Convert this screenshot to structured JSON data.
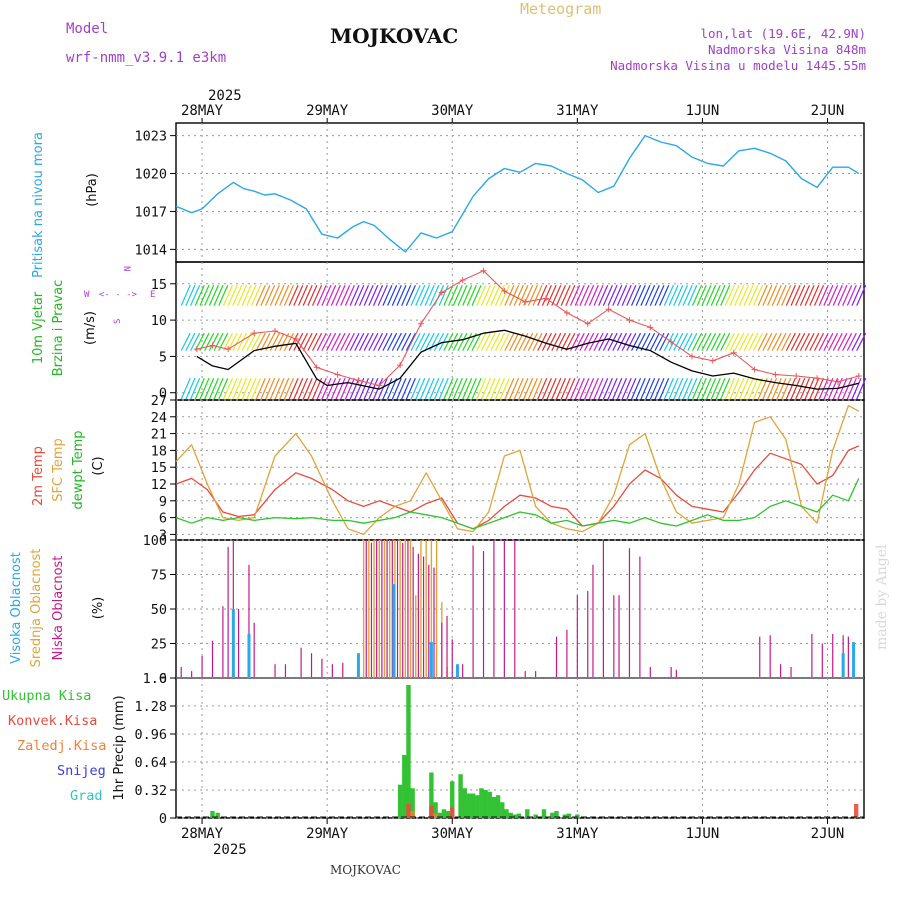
{
  "header": {
    "model_label": "Model",
    "model_value": "wrf-nmm_v3.9.1 e3km",
    "station": "MOJKOVAC",
    "meteogram": "Meteogram",
    "lonlat": "lon,lat (19.6E, 42.9N)",
    "altitude": "Nadmorska Visina 848m",
    "altitude_model": "Nadmorska Visina u modelu 1445.55m",
    "watermark": "made by Angel",
    "footer_station": "MOJKOVAC"
  },
  "dates": {
    "year": "2025",
    "days": [
      "28MAY",
      "29MAY",
      "30MAY",
      "31MAY",
      "1JUN",
      "2JUN"
    ]
  },
  "colors": {
    "pressure": "#2aa8e8",
    "wind": "#000000",
    "temp2m": "#e84c3c",
    "sfctemp": "#e0a43a",
    "dewpt": "#2ec42e",
    "high_cloud": "#2aa8e8",
    "mid_cloud": "#e0a43a",
    "low_cloud": "#c21a8c",
    "total_precip": "#33c233",
    "conv_precip": "#e84c3c",
    "frozen_precip": "#f0803a",
    "snow": "#3c3cd8",
    "hail": "#2ec4c4",
    "gridline": "#9a9a9a"
  },
  "chart_data": [
    {
      "id": "pressure",
      "type": "line",
      "title": "Pritisak na nivou mora",
      "ylabel": "(hPa)",
      "ylim": [
        1013,
        1024
      ],
      "yticks": [
        "1014",
        "1017",
        "1020",
        "1023"
      ],
      "x_unit": "hours since 28MAY 00Z",
      "xlim": [
        -5,
        127
      ],
      "x": [
        -5,
        -2,
        0,
        3,
        6,
        8,
        10,
        12,
        14,
        17,
        20,
        23,
        26,
        29,
        31,
        33,
        36,
        39,
        42,
        45,
        48,
        50,
        52,
        55,
        58,
        61,
        64,
        67,
        70,
        73,
        76,
        79,
        82,
        85,
        88,
        91,
        94,
        97,
        100,
        103,
        106,
        109,
        112,
        115,
        118,
        121,
        124,
        126
      ],
      "values": [
        1017.4,
        1016.9,
        1017.2,
        1018.4,
        1019.3,
        1018.8,
        1018.6,
        1018.3,
        1018.4,
        1017.9,
        1017.2,
        1015.2,
        1014.9,
        1015.8,
        1016.2,
        1015.9,
        1014.8,
        1013.8,
        1015.3,
        1014.9,
        1015.4,
        1016.8,
        1018.2,
        1019.6,
        1020.4,
        1020.1,
        1020.8,
        1020.6,
        1020.0,
        1019.5,
        1018.5,
        1019.0,
        1021.2,
        1023.0,
        1022.5,
        1022.2,
        1021.3,
        1020.8,
        1020.6,
        1021.8,
        1022.0,
        1021.6,
        1021.0,
        1019.6,
        1018.9,
        1020.5,
        1020.5,
        1020.0
      ]
    },
    {
      "id": "wind",
      "type": "line",
      "title": "10m Vjetar Brzina i Pravac",
      "ylabel": "(m/s)",
      "ylim": [
        -1,
        18
      ],
      "yticks": [
        "0",
        "5",
        "10",
        "15"
      ],
      "compass": {
        "n": "N",
        "w": "W",
        "e": "E",
        "s": "S",
        "arrow": "<- - ->"
      },
      "speed_x": [
        -1,
        2,
        5,
        10,
        14,
        18,
        22,
        24,
        26,
        28,
        30,
        34,
        38,
        42,
        46,
        50,
        54,
        58,
        62,
        66,
        70,
        74,
        78,
        82,
        86,
        90,
        94,
        98,
        102,
        106,
        110,
        114,
        118,
        122,
        126
      ],
      "speed_values": [
        5.0,
        3.7,
        3.2,
        5.8,
        6.4,
        6.8,
        1.9,
        1.0,
        1.2,
        1.4,
        1.1,
        0.5,
        2.0,
        5.6,
        6.9,
        7.3,
        8.2,
        8.6,
        7.8,
        6.8,
        6.0,
        6.8,
        7.4,
        6.5,
        5.8,
        4.2,
        3.0,
        2.3,
        2.7,
        1.9,
        1.4,
        1.0,
        0.5,
        0.6,
        1.3
      ],
      "gust_x": [
        -1,
        2,
        5,
        10,
        14,
        18,
        22,
        26,
        30,
        34,
        38,
        42,
        46,
        50,
        54,
        58,
        62,
        66,
        70,
        74,
        78,
        82,
        86,
        90,
        94,
        98,
        102,
        106,
        110,
        114,
        118,
        122,
        126
      ],
      "gust_values": [
        6.0,
        6.5,
        6.0,
        8.2,
        8.5,
        7.4,
        3.5,
        2.5,
        1.7,
        1.0,
        3.8,
        9.5,
        13.8,
        15.5,
        16.8,
        14.0,
        12.5,
        13.0,
        11.0,
        9.5,
        11.5,
        10.0,
        9.0,
        7.0,
        5.0,
        4.4,
        5.5,
        3.2,
        2.5,
        2.3,
        2.0,
        1.5,
        2.3
      ]
    },
    {
      "id": "temperature",
      "type": "line",
      "title": "2m Temp",
      "ylabel": "(C)",
      "ylim": [
        2,
        27
      ],
      "yticks": [
        "3",
        "6",
        "9",
        "12",
        "15",
        "18",
        "21",
        "24",
        "27"
      ],
      "series": [
        {
          "name": "2m Temp",
          "x": [
            -5,
            -2,
            1,
            4,
            7,
            10,
            14,
            18,
            21,
            25,
            28,
            31,
            34,
            37,
            40,
            43,
            46,
            49,
            52,
            55,
            58,
            61,
            64,
            67,
            70,
            73,
            76,
            79,
            82,
            85,
            88,
            91,
            94,
            97,
            100,
            103,
            106,
            109,
            112,
            115,
            118,
            121,
            124,
            126
          ],
          "values": [
            12,
            13,
            11,
            7,
            6.2,
            6.5,
            11,
            14,
            13,
            11,
            9,
            8,
            9,
            8,
            7,
            8.5,
            9.5,
            5,
            4,
            5.5,
            8,
            10,
            9.5,
            8,
            7.5,
            4.5,
            5,
            8,
            12,
            14.5,
            13,
            10,
            8,
            7.5,
            7,
            10.5,
            14.5,
            17.5,
            16.5,
            15.5,
            12,
            13.5,
            18,
            18.8
          ]
        },
        {
          "name": "SFC Temp",
          "x": [
            -5,
            -2,
            1,
            4,
            7,
            10,
            14,
            18,
            21,
            25,
            28,
            31,
            34,
            37,
            40,
            43,
            46,
            49,
            52,
            55,
            58,
            61,
            64,
            67,
            70,
            73,
            76,
            79,
            82,
            85,
            88,
            91,
            94,
            97,
            100,
            103,
            106,
            109,
            112,
            115,
            118,
            121,
            124,
            126
          ],
          "values": [
            16,
            19,
            12,
            6,
            5.5,
            6,
            17,
            21,
            17,
            9,
            4,
            3,
            6,
            8,
            9,
            14,
            9,
            4,
            3.5,
            7,
            17,
            18,
            8,
            5,
            4,
            3.5,
            5,
            10,
            19,
            21,
            13,
            7,
            5,
            5.5,
            6,
            12,
            23,
            24,
            20,
            8,
            5,
            18,
            26,
            25
          ]
        },
        {
          "name": "dewpt Temp",
          "x": [
            -5,
            -2,
            1,
            4,
            7,
            10,
            14,
            18,
            21,
            25,
            28,
            31,
            34,
            37,
            40,
            43,
            46,
            49,
            52,
            55,
            58,
            61,
            64,
            67,
            70,
            73,
            76,
            79,
            82,
            85,
            88,
            91,
            94,
            97,
            100,
            103,
            106,
            109,
            112,
            115,
            118,
            121,
            124,
            126
          ],
          "values": [
            6,
            5,
            6,
            5.5,
            6,
            5.5,
            6,
            5.8,
            6,
            5.5,
            5.5,
            5,
            5.5,
            6,
            7,
            6.5,
            6,
            5,
            4,
            5,
            6,
            7,
            6.5,
            5,
            5.5,
            4.5,
            5,
            5.5,
            5,
            6,
            5,
            4.5,
            5.5,
            6.5,
            5.5,
            5.5,
            6,
            8,
            9,
            8,
            7,
            10,
            9,
            13
          ]
        }
      ]
    },
    {
      "id": "clouds",
      "type": "bar",
      "ylabel": "(%)",
      "ylim": [
        0,
        100
      ],
      "yticks": [
        "0",
        "25",
        "50",
        "75",
        "100"
      ],
      "series": [
        {
          "name": "Visoka Oblacnost",
          "x": [
            6,
            9,
            30,
            36.8,
            44,
            49,
            123,
            125
          ],
          "values": [
            50,
            32,
            18,
            68,
            26,
            10,
            18,
            26
          ]
        },
        {
          "name": "Srednja Oblacnost",
          "x": [
            31,
            32,
            33,
            34,
            35,
            36,
            37,
            38,
            39,
            40,
            41,
            42,
            43,
            44,
            45,
            46,
            47
          ],
          "values": [
            100,
            100,
            100,
            100,
            100,
            100,
            100,
            100,
            100,
            100,
            60,
            100,
            100,
            100,
            100,
            55,
            8
          ]
        },
        {
          "name": "Niska Oblacnost",
          "x": [
            -4,
            -2,
            0,
            2,
            4,
            5,
            6,
            7,
            9,
            10,
            14,
            16,
            19,
            21,
            23,
            25,
            27,
            31.5,
            32.5,
            33.5,
            34.5,
            35.5,
            36.5,
            37.5,
            38.5,
            39.5,
            40.5,
            41.5,
            42.5,
            43.5,
            44.5,
            46,
            47,
            48,
            50,
            52,
            54,
            56,
            58,
            60,
            62,
            64,
            68,
            70,
            72,
            74,
            75,
            77,
            79,
            80,
            82,
            84,
            86,
            90,
            91,
            107,
            109,
            111,
            113,
            117,
            119,
            121,
            123,
            124
          ],
          "values": [
            8,
            5,
            16,
            27,
            52,
            95,
            100,
            50,
            82,
            40,
            10,
            10,
            22,
            18,
            14,
            10,
            11,
            100,
            98,
            100,
            100,
            100,
            100,
            100,
            98,
            100,
            95,
            90,
            88,
            82,
            80,
            40,
            45,
            28,
            10,
            96,
            92,
            100,
            100,
            100,
            5,
            5,
            30,
            35,
            60,
            63,
            82,
            100,
            60,
            60,
            94,
            88,
            8,
            8,
            6,
            30,
            31,
            10,
            8,
            32,
            25,
            32,
            31,
            30
          ]
        }
      ]
    },
    {
      "id": "precip",
      "type": "bar",
      "ylabel": "1hr Precip (mm)",
      "ylim": [
        0,
        1.6
      ],
      "yticks": [
        "0",
        "0.32",
        "0.64",
        "0.96",
        "1.28",
        "1.6"
      ],
      "series": [
        {
          "name": "Ukupna Kisa",
          "x": [
            2,
            3,
            38,
            38.8,
            39.6,
            40.4,
            44,
            44.8,
            45.6,
            46.4,
            47.2,
            48,
            49.6,
            50.4,
            51.2,
            52,
            52.8,
            53.6,
            54.4,
            55.2,
            56,
            56.8,
            57.6,
            58.4,
            59.2,
            60,
            60.8,
            62.4,
            64,
            65.6,
            67.2,
            68,
            69.6,
            70.4,
            72
          ],
          "values": [
            0.08,
            0.06,
            0.38,
            0.72,
            1.52,
            0.34,
            0.52,
            0.18,
            0.06,
            0.1,
            0.08,
            0.42,
            0.5,
            0.34,
            0.28,
            0.28,
            0.26,
            0.34,
            0.32,
            0.3,
            0.24,
            0.26,
            0.18,
            0.1,
            0.06,
            0.04,
            0.05,
            0.1,
            0.04,
            0.1,
            0.06,
            0.08,
            0.04,
            0.05,
            0.04
          ]
        },
        {
          "name": "Konvek.Kisa",
          "x": [
            39.6,
            44,
            48,
            125.5
          ],
          "values": [
            0.16,
            0.14,
            0.12,
            0.16
          ]
        },
        {
          "name": "Zaledj.Kisa",
          "x": [
            40.4,
            44.8
          ],
          "values": [
            0.08,
            0.05
          ]
        },
        {
          "name": "Snijeg",
          "x": [],
          "values": []
        },
        {
          "name": "Grad",
          "x": [],
          "values": []
        }
      ]
    }
  ],
  "panel_labels": {
    "pressure_title": "Pritisak na nivou mora",
    "pressure_unit": "(hPa)",
    "wind_title_a": "10m Vjetar",
    "wind_title_b": "Brzina i Pravac",
    "wind_unit": "(m/s)",
    "temp_a": "2m Temp",
    "temp_b": "SFC Temp",
    "temp_c": "dewpt Temp",
    "temp_unit": "(C)",
    "cloud_high": "Visoka Oblacnost",
    "cloud_mid": "Srednja Oblacnost",
    "cloud_low": "Niska Oblacnost",
    "cloud_unit": "(%)",
    "precip_unit": "1hr Precip (mm)",
    "legend_total": "Ukupna Kisa",
    "legend_conv": "Konvek.Kisa",
    "legend_frozen": "Zaledj.Kisa",
    "legend_snow": "Snijeg",
    "legend_hail": "Grad"
  }
}
